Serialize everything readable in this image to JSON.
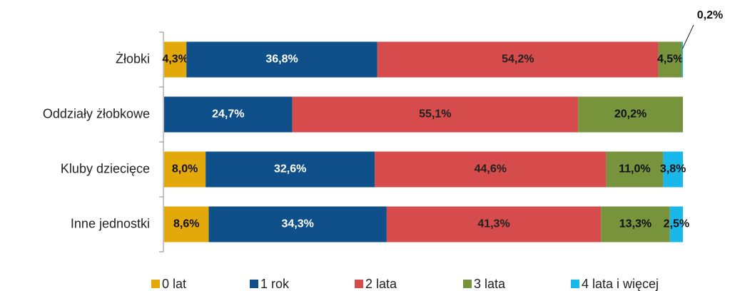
{
  "chart_data": {
    "type": "stacked_barh",
    "categories": [
      "Żłobki",
      "Oddziały żłobkowe",
      "Kluby dziecięce",
      "Inne jednostki"
    ],
    "xlim": [
      0,
      100
    ],
    "series": [
      {
        "name": "0 lat",
        "color": "#e3a90a",
        "values": [
          4.3,
          null,
          8.0,
          8.6
        ],
        "value_labels": [
          "4,3%",
          null,
          "8,0%",
          "8,6%"
        ]
      },
      {
        "name": "1 rok",
        "color": "#0f4f8a",
        "values": [
          36.8,
          24.7,
          32.6,
          34.3
        ],
        "value_labels": [
          "36,8%",
          "24,7%",
          "32,6%",
          "34,3%"
        ]
      },
      {
        "name": "2 lata",
        "color": "#d64b4b",
        "values": [
          54.2,
          55.1,
          44.6,
          41.3
        ],
        "value_labels": [
          "54,2%",
          "55,1%",
          "44,6%",
          "41,3%"
        ]
      },
      {
        "name": "3 lata",
        "color": "#77933c",
        "values": [
          4.5,
          20.2,
          11.0,
          13.3
        ],
        "value_labels": [
          "4,5%",
          "20,2%",
          "11,0%",
          "13,3%"
        ]
      },
      {
        "name": "4 lata i więcej",
        "color": "#1ab7ea",
        "values": [
          0.2,
          null,
          3.8,
          2.5
        ],
        "value_labels": [
          "0,2%",
          null,
          "3,8%",
          "2,5%"
        ]
      }
    ],
    "legend": "bottom"
  }
}
